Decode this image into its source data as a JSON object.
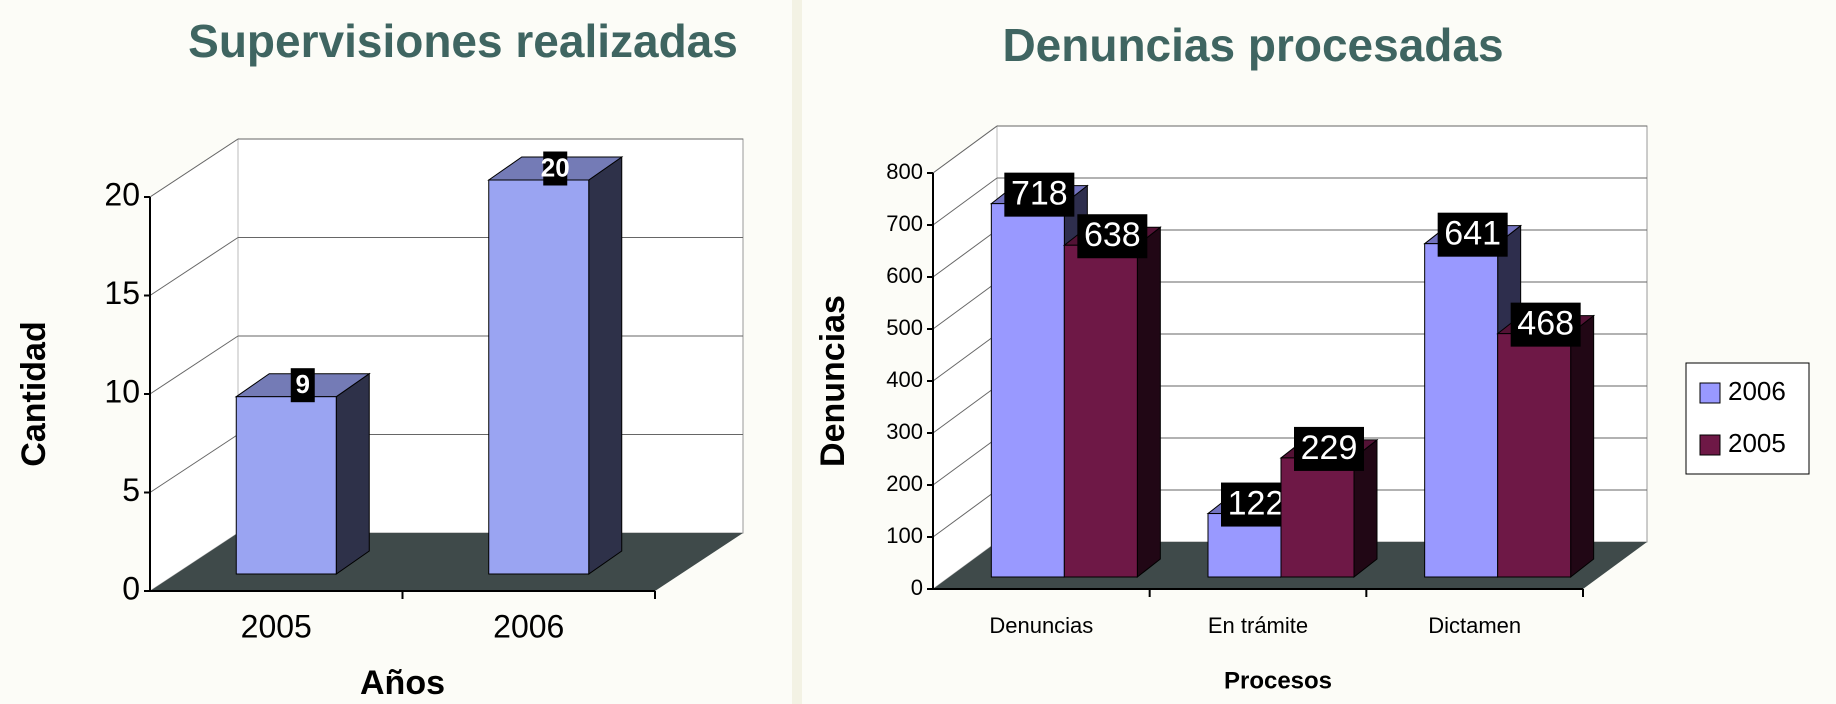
{
  "chart_data": [
    {
      "type": "bar3d",
      "title": "Supervisiones realizadas",
      "ylabel": "Cantidad",
      "xlabel": "Años",
      "categories": [
        "2005",
        "2006"
      ],
      "values": [
        9,
        20
      ],
      "color": "#9aa4f2",
      "ylim": [
        0,
        20
      ],
      "yticks": [
        0,
        5,
        10,
        15,
        20
      ],
      "grid": true
    },
    {
      "type": "bar3d",
      "title": "Denuncias procesadas",
      "ylabel": "Denuncias",
      "xlabel": "Procesos",
      "categories": [
        "Denuncias",
        "En trámite",
        "Dictamen"
      ],
      "series": [
        {
          "name": "2006",
          "color": "#9999ff",
          "values": [
            718,
            122,
            641
          ]
        },
        {
          "name": "2005",
          "color": "#6e1846",
          "values": [
            638,
            229,
            468
          ]
        }
      ],
      "ylim": [
        0,
        800
      ],
      "yticks": [
        0,
        100,
        200,
        300,
        400,
        500,
        600,
        700,
        800
      ],
      "grid": true,
      "legend": "right"
    }
  ]
}
